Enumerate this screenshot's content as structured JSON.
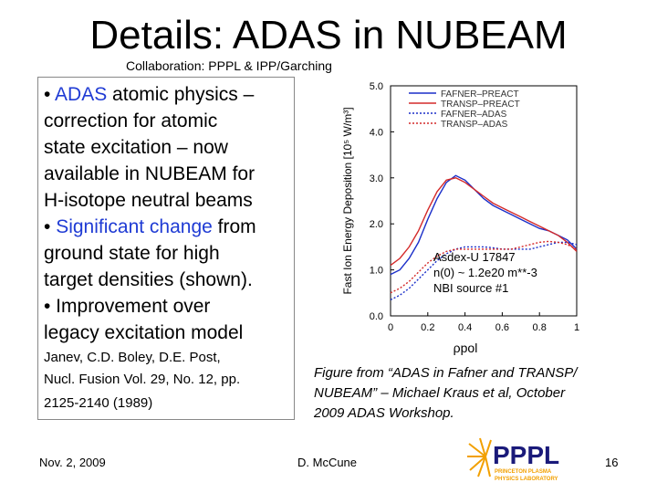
{
  "slide": {
    "title": "Details: ADAS in NUBEAM",
    "subtitle": "Collaboration: PPPL & IPP/Garching",
    "bullets": {
      "b1_prefix": "• ",
      "b1_hl": "ADAS",
      "b1_rest": " atomic physics –",
      "b1_l2": "correction for atomic",
      "b1_l3": "state excitation – now",
      "b1_l4": "available in NUBEAM for",
      "b1_l5": "H-isotope neutral beams",
      "b2_prefix": "• ",
      "b2_hl": "Significant change",
      "b2_rest": " from",
      "b2_l2": "ground state for high",
      "b2_l3": "target densities (shown).",
      "b3_l1": "• Improvement over",
      "b3_l2": "legacy excitation model"
    },
    "reference": {
      "l1": "Janev, C.D. Boley, D.E. Post,",
      "l2": "Nucl. Fusion Vol. 29, No. 12, pp.",
      "l3": "2125-2140 (1989)"
    },
    "caption": {
      "l1": "Figure from “ADAS in Fafner and TRANSP/",
      "l2": "NUBEAM” – Michael Kraus et al, October",
      "l3": "2009 ADAS Workshop."
    },
    "footer": {
      "date": "Nov. 2, 2009",
      "author": "D. McCune",
      "page": "16"
    },
    "logo": {
      "text": "PPPL",
      "sub1": "PRINCETON PLASMA",
      "sub2": "PHYSICS LABORATORY"
    }
  },
  "colors": {
    "accent": "#1f3bd4",
    "series_blue": "#1b2fc9",
    "series_red": "#d42a2a"
  },
  "chart_data": {
    "type": "line",
    "ylabel": "Fast Ion Energy Deposition [10⁵ W/m³]",
    "xlabel": "ρpol",
    "xlim": [
      0,
      1
    ],
    "ylim": [
      0,
      5
    ],
    "xticks": [
      "0",
      "0.2",
      "0.4",
      "0.6",
      "0.8",
      "1"
    ],
    "yticks": [
      "0.0",
      "1.0",
      "2.0",
      "3.0",
      "4.0",
      "5.0"
    ],
    "legend_position": "top-right",
    "annotation": [
      "Asdex-U 17847",
      "n(0) ~ 1.2e20 m**-3",
      "NBI source #1"
    ],
    "series": [
      {
        "name": "FAFNER–PREACT",
        "color": "#1b2fc9",
        "dash": "solid",
        "x": [
          0,
          0.05,
          0.1,
          0.15,
          0.2,
          0.25,
          0.3,
          0.35,
          0.4,
          0.45,
          0.5,
          0.55,
          0.6,
          0.65,
          0.7,
          0.75,
          0.8,
          0.85,
          0.9,
          0.95,
          1.0
        ],
        "y": [
          0.9,
          1.0,
          1.25,
          1.6,
          2.1,
          2.55,
          2.9,
          3.05,
          2.95,
          2.75,
          2.55,
          2.4,
          2.3,
          2.2,
          2.1,
          2.0,
          1.9,
          1.85,
          1.75,
          1.65,
          1.45
        ]
      },
      {
        "name": "TRANSP–PREACT",
        "color": "#d42a2a",
        "dash": "solid",
        "x": [
          0,
          0.05,
          0.1,
          0.15,
          0.2,
          0.25,
          0.3,
          0.35,
          0.4,
          0.45,
          0.5,
          0.55,
          0.6,
          0.65,
          0.7,
          0.75,
          0.8,
          0.85,
          0.9,
          0.95,
          1.0
        ],
        "y": [
          1.1,
          1.25,
          1.5,
          1.85,
          2.3,
          2.7,
          2.95,
          3.0,
          2.9,
          2.75,
          2.6,
          2.45,
          2.35,
          2.25,
          2.15,
          2.05,
          1.95,
          1.85,
          1.75,
          1.6,
          1.4
        ]
      },
      {
        "name": "FAFNER–ADAS",
        "color": "#1b2fc9",
        "dash": "dotted",
        "x": [
          0,
          0.05,
          0.1,
          0.15,
          0.2,
          0.25,
          0.3,
          0.35,
          0.4,
          0.45,
          0.5,
          0.55,
          0.6,
          0.65,
          0.7,
          0.75,
          0.8,
          0.85,
          0.9,
          0.95,
          1.0
        ],
        "y": [
          0.35,
          0.45,
          0.6,
          0.8,
          1.0,
          1.2,
          1.35,
          1.45,
          1.5,
          1.5,
          1.5,
          1.48,
          1.45,
          1.45,
          1.45,
          1.45,
          1.5,
          1.55,
          1.6,
          1.6,
          1.55
        ]
      },
      {
        "name": "TRANSP–ADAS",
        "color": "#d42a2a",
        "dash": "dotted",
        "x": [
          0,
          0.05,
          0.1,
          0.15,
          0.2,
          0.25,
          0.3,
          0.35,
          0.4,
          0.45,
          0.5,
          0.55,
          0.6,
          0.65,
          0.7,
          0.75,
          0.8,
          0.85,
          0.9,
          0.95,
          1.0
        ],
        "y": [
          0.5,
          0.6,
          0.75,
          0.95,
          1.15,
          1.3,
          1.4,
          1.45,
          1.45,
          1.45,
          1.45,
          1.45,
          1.45,
          1.45,
          1.5,
          1.55,
          1.6,
          1.62,
          1.6,
          1.55,
          1.45
        ]
      }
    ]
  }
}
